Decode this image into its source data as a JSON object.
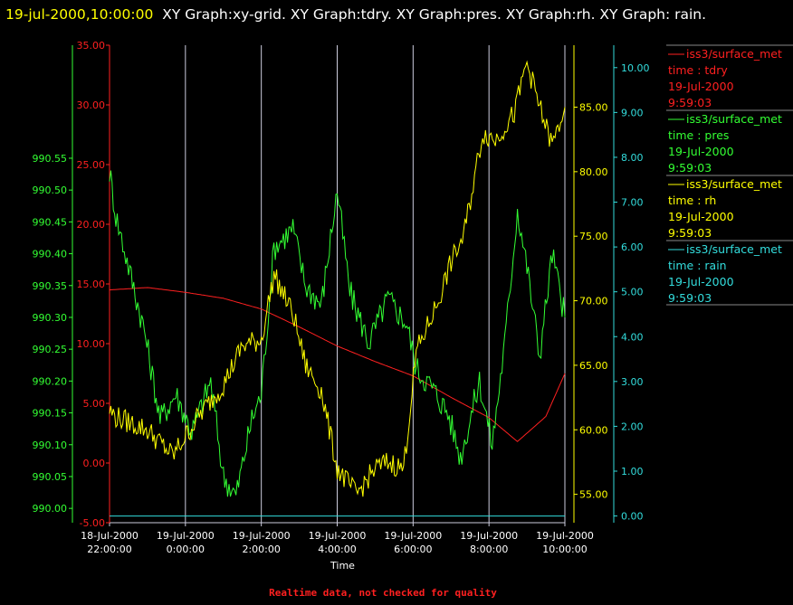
{
  "header": {
    "timestamp": "19-jul-2000,10:00:00",
    "graphs": "XY Graph:xy-grid.  XY Graph:tdry.  XY Graph:pres.  XY Graph:rh.  XY Graph: rain."
  },
  "footer": "Realtime data, not checked for quality",
  "colors": {
    "tdry": "#ff2020",
    "pres": "#33ff33",
    "rh": "#ffff00",
    "rain": "#33dddd",
    "grid": "#ccccdd"
  },
  "chart_data": {
    "type": "line",
    "xlabel": "Time",
    "x_ticks": [
      {
        "top": "18-Jul-2000",
        "bottom": "22:00:00"
      },
      {
        "top": "19-Jul-2000",
        "bottom": "0:00:00"
      },
      {
        "top": "19-Jul-2000",
        "bottom": "2:00:00"
      },
      {
        "top": "19-Jul-2000",
        "bottom": "4:00:00"
      },
      {
        "top": "19-Jul-2000",
        "bottom": "6:00:00"
      },
      {
        "top": "19-Jul-2000",
        "bottom": "8:00:00"
      },
      {
        "top": "19-Jul-2000",
        "bottom": "10:00:00"
      }
    ],
    "xlim": [
      "2000-07-18 22:00",
      "2000-07-19 10:00"
    ],
    "grid": "vertical",
    "axes": {
      "tdry": {
        "ticks": [
          "35.00",
          "30.00",
          "25.00",
          "20.00",
          "15.00",
          "10.00",
          "5.00",
          "0.00",
          "-5.00"
        ],
        "ylim": [
          -5,
          35
        ]
      },
      "pres": {
        "ticks": [
          "990.55",
          "990.50",
          "990.45",
          "990.40",
          "990.35",
          "990.30",
          "990.25",
          "990.20",
          "990.15",
          "990.10",
          "990.05",
          "990.00"
        ],
        "ylim": [
          989.9775,
          990.7275
        ]
      },
      "rh": {
        "ticks": [
          "85.00",
          "80.00",
          "75.00",
          "70.00",
          "65.00",
          "60.00",
          "55.00"
        ],
        "ylim": [
          52.8,
          89.8
        ]
      },
      "rain": {
        "ticks": [
          "10.00",
          "9.00",
          "8.00",
          "7.00",
          "6.00",
          "5.00",
          "4.00",
          "3.00",
          "2.00",
          "1.00",
          "0.00"
        ],
        "ylim": [
          -0.15,
          10.5
        ]
      }
    },
    "series": [
      {
        "name": "tdry",
        "x": [
          "2000-07-18 22:00",
          "2000-07-18 23:00",
          "2000-07-19 00:00",
          "2000-07-19 01:00",
          "2000-07-19 02:00",
          "2000-07-19 03:00",
          "2000-07-19 04:00",
          "2000-07-19 05:00",
          "2000-07-19 06:00",
          "2000-07-19 07:00",
          "2000-07-19 08:00",
          "2000-07-19 08:45",
          "2000-07-19 09:30",
          "2000-07-19 10:00"
        ],
        "y": [
          14.5,
          14.7,
          14.3,
          13.8,
          12.9,
          11.4,
          9.8,
          8.5,
          7.3,
          5.5,
          3.8,
          1.8,
          3.9,
          7.5
        ]
      },
      {
        "name": "pres",
        "x": [
          "2000-07-18 22:00",
          "2000-07-18 22:10",
          "2000-07-18 22:30",
          "2000-07-18 22:55",
          "2000-07-18 23:20",
          "2000-07-18 23:45",
          "2000-07-19 00:10",
          "2000-07-19 00:40",
          "2000-07-19 01:00",
          "2000-07-19 01:20",
          "2000-07-19 01:45",
          "2000-07-19 02:00",
          "2000-07-19 02:20",
          "2000-07-19 02:50",
          "2000-07-19 03:10",
          "2000-07-19 03:35",
          "2000-07-19 04:00",
          "2000-07-19 04:20",
          "2000-07-19 04:50",
          "2000-07-19 05:20",
          "2000-07-19 05:50",
          "2000-07-19 06:05",
          "2000-07-19 06:30",
          "2000-07-19 06:55",
          "2000-07-19 07:15",
          "2000-07-19 07:45",
          "2000-07-19 08:05",
          "2000-07-19 08:25",
          "2000-07-19 08:45",
          "2000-07-19 09:00",
          "2000-07-19 09:20",
          "2000-07-19 09:40",
          "2000-07-19 10:00"
        ],
        "y": [
          990.53,
          990.46,
          990.38,
          990.28,
          990.14,
          990.18,
          990.12,
          990.2,
          990.05,
          990.02,
          990.14,
          990.18,
          990.41,
          990.44,
          990.35,
          990.32,
          990.5,
          990.34,
          990.26,
          990.33,
          990.29,
          990.22,
          990.19,
          990.15,
          990.08,
          990.2,
          990.1,
          990.26,
          990.47,
          990.38,
          990.24,
          990.4,
          990.3
        ]
      },
      {
        "name": "rh",
        "x": [
          "2000-07-18 22:00",
          "2000-07-18 22:10",
          "2000-07-18 23:00",
          "2000-07-18 23:40",
          "2000-07-19 00:20",
          "2000-07-19 01:00",
          "2000-07-19 01:30",
          "2000-07-19 02:00",
          "2000-07-19 02:20",
          "2000-07-19 02:50",
          "2000-07-19 03:10",
          "2000-07-19 03:35",
          "2000-07-19 04:00",
          "2000-07-19 04:30",
          "2000-07-19 05:00",
          "2000-07-19 05:20",
          "2000-07-19 05:45",
          "2000-07-19 06:05",
          "2000-07-19 06:40",
          "2000-07-19 07:00",
          "2000-07-19 07:20",
          "2000-07-19 07:50",
          "2000-07-19 08:10",
          "2000-07-19 08:40",
          "2000-07-19 09:00",
          "2000-07-19 09:20",
          "2000-07-19 09:40",
          "2000-07-19 10:00"
        ],
        "y": [
          61.5,
          61.0,
          60.0,
          58.0,
          61.0,
          63.5,
          66.5,
          67.0,
          72.0,
          69.0,
          65.0,
          63.0,
          57.0,
          55.0,
          57.0,
          57.5,
          57.0,
          66.0,
          70.0,
          73.0,
          75.0,
          83.0,
          82.5,
          84.5,
          88.5,
          85.0,
          82.0,
          85.0
        ]
      },
      {
        "name": "rain",
        "x": [
          "2000-07-18 22:00",
          "2000-07-19 10:00"
        ],
        "y": [
          0.0,
          0.0
        ]
      }
    ]
  },
  "legend": [
    {
      "series": "iss3/surface_met",
      "field": "time : tdry",
      "date": "19-Jul-2000",
      "time": "9:59:03",
      "color": "#ff2020"
    },
    {
      "series": "iss3/surface_met",
      "field": "time : pres",
      "date": "19-Jul-2000",
      "time": "9:59:03",
      "color": "#33ff33"
    },
    {
      "series": "iss3/surface_met",
      "field": "time : rh",
      "date": "19-Jul-2000",
      "time": "9:59:03",
      "color": "#ffff00"
    },
    {
      "series": "iss3/surface_met",
      "field": "time : rain",
      "date": "19-Jul-2000",
      "time": "9:59:03",
      "color": "#33dddd"
    }
  ]
}
